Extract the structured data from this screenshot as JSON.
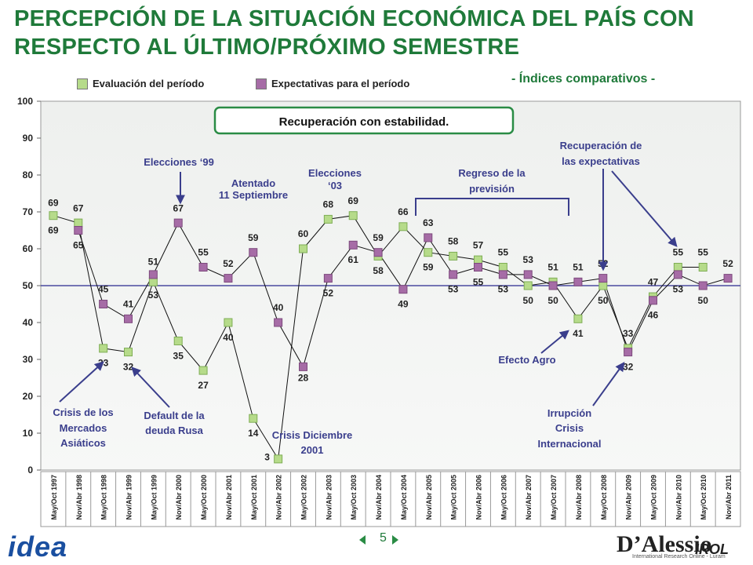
{
  "slide": {
    "title": "PERCEPCIÓN DE LA SITUACIÓN ECONÓMICA DEL PAÍS CON RESPECTO AL ÚLTIMO/PRÓXIMO SEMESTRE",
    "subtitle": "- Índices comparativos -",
    "page_number": "5",
    "logo_text": "idea",
    "brand_text": "D’Alessio",
    "brand_irol": "IROL",
    "brand_sub": "International Research Online - Luram"
  },
  "chart_data": {
    "type": "line",
    "ylim": [
      0,
      100
    ],
    "yticks": [
      0,
      10,
      20,
      30,
      40,
      50,
      60,
      70,
      80,
      90,
      100
    ],
    "reference_line": 50,
    "categories": [
      "May/Oct 1997",
      "Nov/Abr 1998",
      "May/Oct 1998",
      "Nov/Abr 1999",
      "May/Oct 1999",
      "Nov/Abr 2000",
      "May/Oct 2000",
      "Nov/Abr 2001",
      "May/Oct 2001",
      "Nov/Abr 2002",
      "May/Oct 2002",
      "Nov/Abr 2003",
      "May/Oct 2003",
      "Nov/Abr 2004",
      "May/Oct 2004",
      "Nov/Abr 2005",
      "May/Oct 2005",
      "Nov/Abr 2006",
      "May/Oct 2006",
      "Nov/Abr 2007",
      "May/Oct 2007",
      "Nov/Abr 2008",
      "May/Oct 2008",
      "Nov/Abr 2009",
      "May/Oct 2009",
      "Nov/Abr 2010",
      "May/Oct 2010",
      "Nov/Abr 2011"
    ],
    "series": [
      {
        "name": "Evaluación del período",
        "color": "#b6db8a",
        "points": [
          [
            0,
            69
          ],
          [
            1,
            67
          ],
          [
            2,
            33
          ],
          [
            3,
            32
          ],
          [
            4,
            51
          ],
          [
            5,
            35
          ],
          [
            6,
            27
          ],
          [
            7,
            40
          ],
          [
            8,
            14
          ],
          [
            9,
            3
          ],
          [
            10,
            60
          ],
          [
            11,
            68
          ],
          [
            12,
            69
          ],
          [
            13,
            58
          ],
          [
            14,
            66
          ],
          [
            15,
            59
          ],
          [
            16,
            58
          ],
          [
            17,
            57
          ],
          [
            18,
            55
          ],
          [
            19,
            50
          ],
          [
            20,
            51
          ],
          [
            21,
            41
          ],
          [
            22,
            50
          ],
          [
            23,
            33
          ],
          [
            24,
            47
          ],
          [
            25,
            55
          ],
          [
            26,
            55
          ]
        ]
      },
      {
        "name": "Expectativas para el período",
        "color": "#a66ca6",
        "points": [
          [
            1,
            65
          ],
          [
            2,
            45
          ],
          [
            3,
            41
          ],
          [
            4,
            53
          ],
          [
            5,
            67
          ],
          [
            6,
            55
          ],
          [
            7,
            52
          ],
          [
            8,
            59
          ],
          [
            9,
            40
          ],
          [
            10,
            28
          ],
          [
            11,
            52
          ],
          [
            12,
            61
          ],
          [
            13,
            59
          ],
          [
            14,
            49
          ],
          [
            15,
            63
          ],
          [
            16,
            53
          ],
          [
            17,
            55
          ],
          [
            18,
            53
          ],
          [
            19,
            53
          ],
          [
            20,
            50
          ],
          [
            21,
            51
          ],
          [
            22,
            52
          ],
          [
            23,
            32
          ],
          [
            24,
            46
          ],
          [
            25,
            53
          ],
          [
            26,
            50
          ],
          [
            27,
            52
          ]
        ]
      }
    ],
    "point_labels": [
      {
        "text": "69",
        "c": 0,
        "v": 72.5
      },
      {
        "text": "69",
        "c": 0,
        "v": 65
      },
      {
        "text": "67",
        "c": 1,
        "v": 71
      },
      {
        "text": "65",
        "c": 1,
        "v": 61
      },
      {
        "text": "45",
        "c": 2,
        "v": 49
      },
      {
        "text": "33",
        "c": 2,
        "v": 29
      },
      {
        "text": "41",
        "c": 3,
        "v": 45
      },
      {
        "text": "32",
        "c": 3,
        "v": 28
      },
      {
        "text": "51",
        "c": 4,
        "v": 56.5
      },
      {
        "text": "53",
        "c": 4,
        "v": 47.5
      },
      {
        "text": "67",
        "c": 5,
        "v": 71
      },
      {
        "text": "35",
        "c": 5,
        "v": 31
      },
      {
        "text": "55",
        "c": 6,
        "v": 59
      },
      {
        "text": "27",
        "c": 6,
        "v": 23
      },
      {
        "text": "52",
        "c": 7,
        "v": 56
      },
      {
        "text": "40",
        "c": 7,
        "v": 36
      },
      {
        "text": "59",
        "c": 8,
        "v": 63
      },
      {
        "text": "14",
        "c": 8,
        "v": 10
      },
      {
        "text": "40",
        "c": 9,
        "v": 44
      },
      {
        "text": "3",
        "c": 9,
        "v": 3.5,
        "dx": -14
      },
      {
        "text": "60",
        "c": 10,
        "v": 64
      },
      {
        "text": "28",
        "c": 10,
        "v": 25
      },
      {
        "text": "68",
        "c": 11,
        "v": 72
      },
      {
        "text": "52",
        "c": 11,
        "v": 48
      },
      {
        "text": "69",
        "c": 12,
        "v": 73
      },
      {
        "text": "61",
        "c": 12,
        "v": 57
      },
      {
        "text": "59",
        "c": 13,
        "v": 63
      },
      {
        "text": "58",
        "c": 13,
        "v": 54
      },
      {
        "text": "66",
        "c": 14,
        "v": 70
      },
      {
        "text": "49",
        "c": 14,
        "v": 45
      },
      {
        "text": "63",
        "c": 15,
        "v": 67
      },
      {
        "text": "59",
        "c": 15,
        "v": 55
      },
      {
        "text": "58",
        "c": 16,
        "v": 62
      },
      {
        "text": "53",
        "c": 16,
        "v": 49
      },
      {
        "text": "57",
        "c": 17,
        "v": 61
      },
      {
        "text": "55",
        "c": 17,
        "v": 51
      },
      {
        "text": "55",
        "c": 18,
        "v": 59
      },
      {
        "text": "53",
        "c": 18,
        "v": 49
      },
      {
        "text": "53",
        "c": 19,
        "v": 57
      },
      {
        "text": "50",
        "c": 19,
        "v": 46
      },
      {
        "text": "51",
        "c": 20,
        "v": 55
      },
      {
        "text": "50",
        "c": 20,
        "v": 46
      },
      {
        "text": "51",
        "c": 21,
        "v": 55
      },
      {
        "text": "41",
        "c": 21,
        "v": 37
      },
      {
        "text": "52",
        "c": 22,
        "v": 56
      },
      {
        "text": "50",
        "c": 22,
        "v": 46
      },
      {
        "text": "33",
        "c": 23,
        "v": 37
      },
      {
        "text": "32",
        "c": 23,
        "v": 28
      },
      {
        "text": "47",
        "c": 24,
        "v": 51
      },
      {
        "text": "46",
        "c": 24,
        "v": 42
      },
      {
        "text": "55",
        "c": 25,
        "v": 59
      },
      {
        "text": "53",
        "c": 25,
        "v": 49
      },
      {
        "text": "55",
        "c": 26,
        "v": 59
      },
      {
        "text": "50",
        "c": 26,
        "v": 46
      },
      {
        "text": "52",
        "c": 27,
        "v": 56
      }
    ],
    "callout_box": "Recuperación con estabilidad.",
    "annotations": [
      {
        "id": "elecciones99",
        "lines": [
          "Elecciones ‘99"
        ],
        "color": "#3a3e8c"
      },
      {
        "id": "atentado",
        "lines": [
          "Atentado",
          "11 Septiembre"
        ],
        "color": "#3a3e8c"
      },
      {
        "id": "elecciones03",
        "lines": [
          "Elecciones",
          "‘03"
        ],
        "color": "#3a3e8c"
      },
      {
        "id": "regreso",
        "lines": [
          "Regreso de la",
          "previsión"
        ],
        "color": "#3a3e8c"
      },
      {
        "id": "recuperacion",
        "lines": [
          "Recuperación de",
          "las expectativas"
        ],
        "color": "#3a3e8c"
      },
      {
        "id": "crisis-asia",
        "lines": [
          "Crisis de los",
          "Mercados",
          "Asiáticos"
        ],
        "color": "#3a3e8c"
      },
      {
        "id": "default-rusa",
        "lines": [
          "Default de la",
          "deuda Rusa"
        ],
        "color": "#3a3e8c"
      },
      {
        "id": "crisis2001",
        "lines": [
          "Crisis Diciembre",
          "2001"
        ],
        "color": "#3a3e8c"
      },
      {
        "id": "agro",
        "lines": [
          "Efecto Agro"
        ],
        "color": "#3a3e8c"
      },
      {
        "id": "irrupcion",
        "lines": [
          "Irrupción",
          "Crisis",
          "Internacional"
        ],
        "color": "#3a3e8c"
      }
    ],
    "colors": {
      "title": "#1f7a3a",
      "accent": "#2a8c45",
      "annotation": "#3a3e8c",
      "reference": "#4a4aa0"
    }
  }
}
